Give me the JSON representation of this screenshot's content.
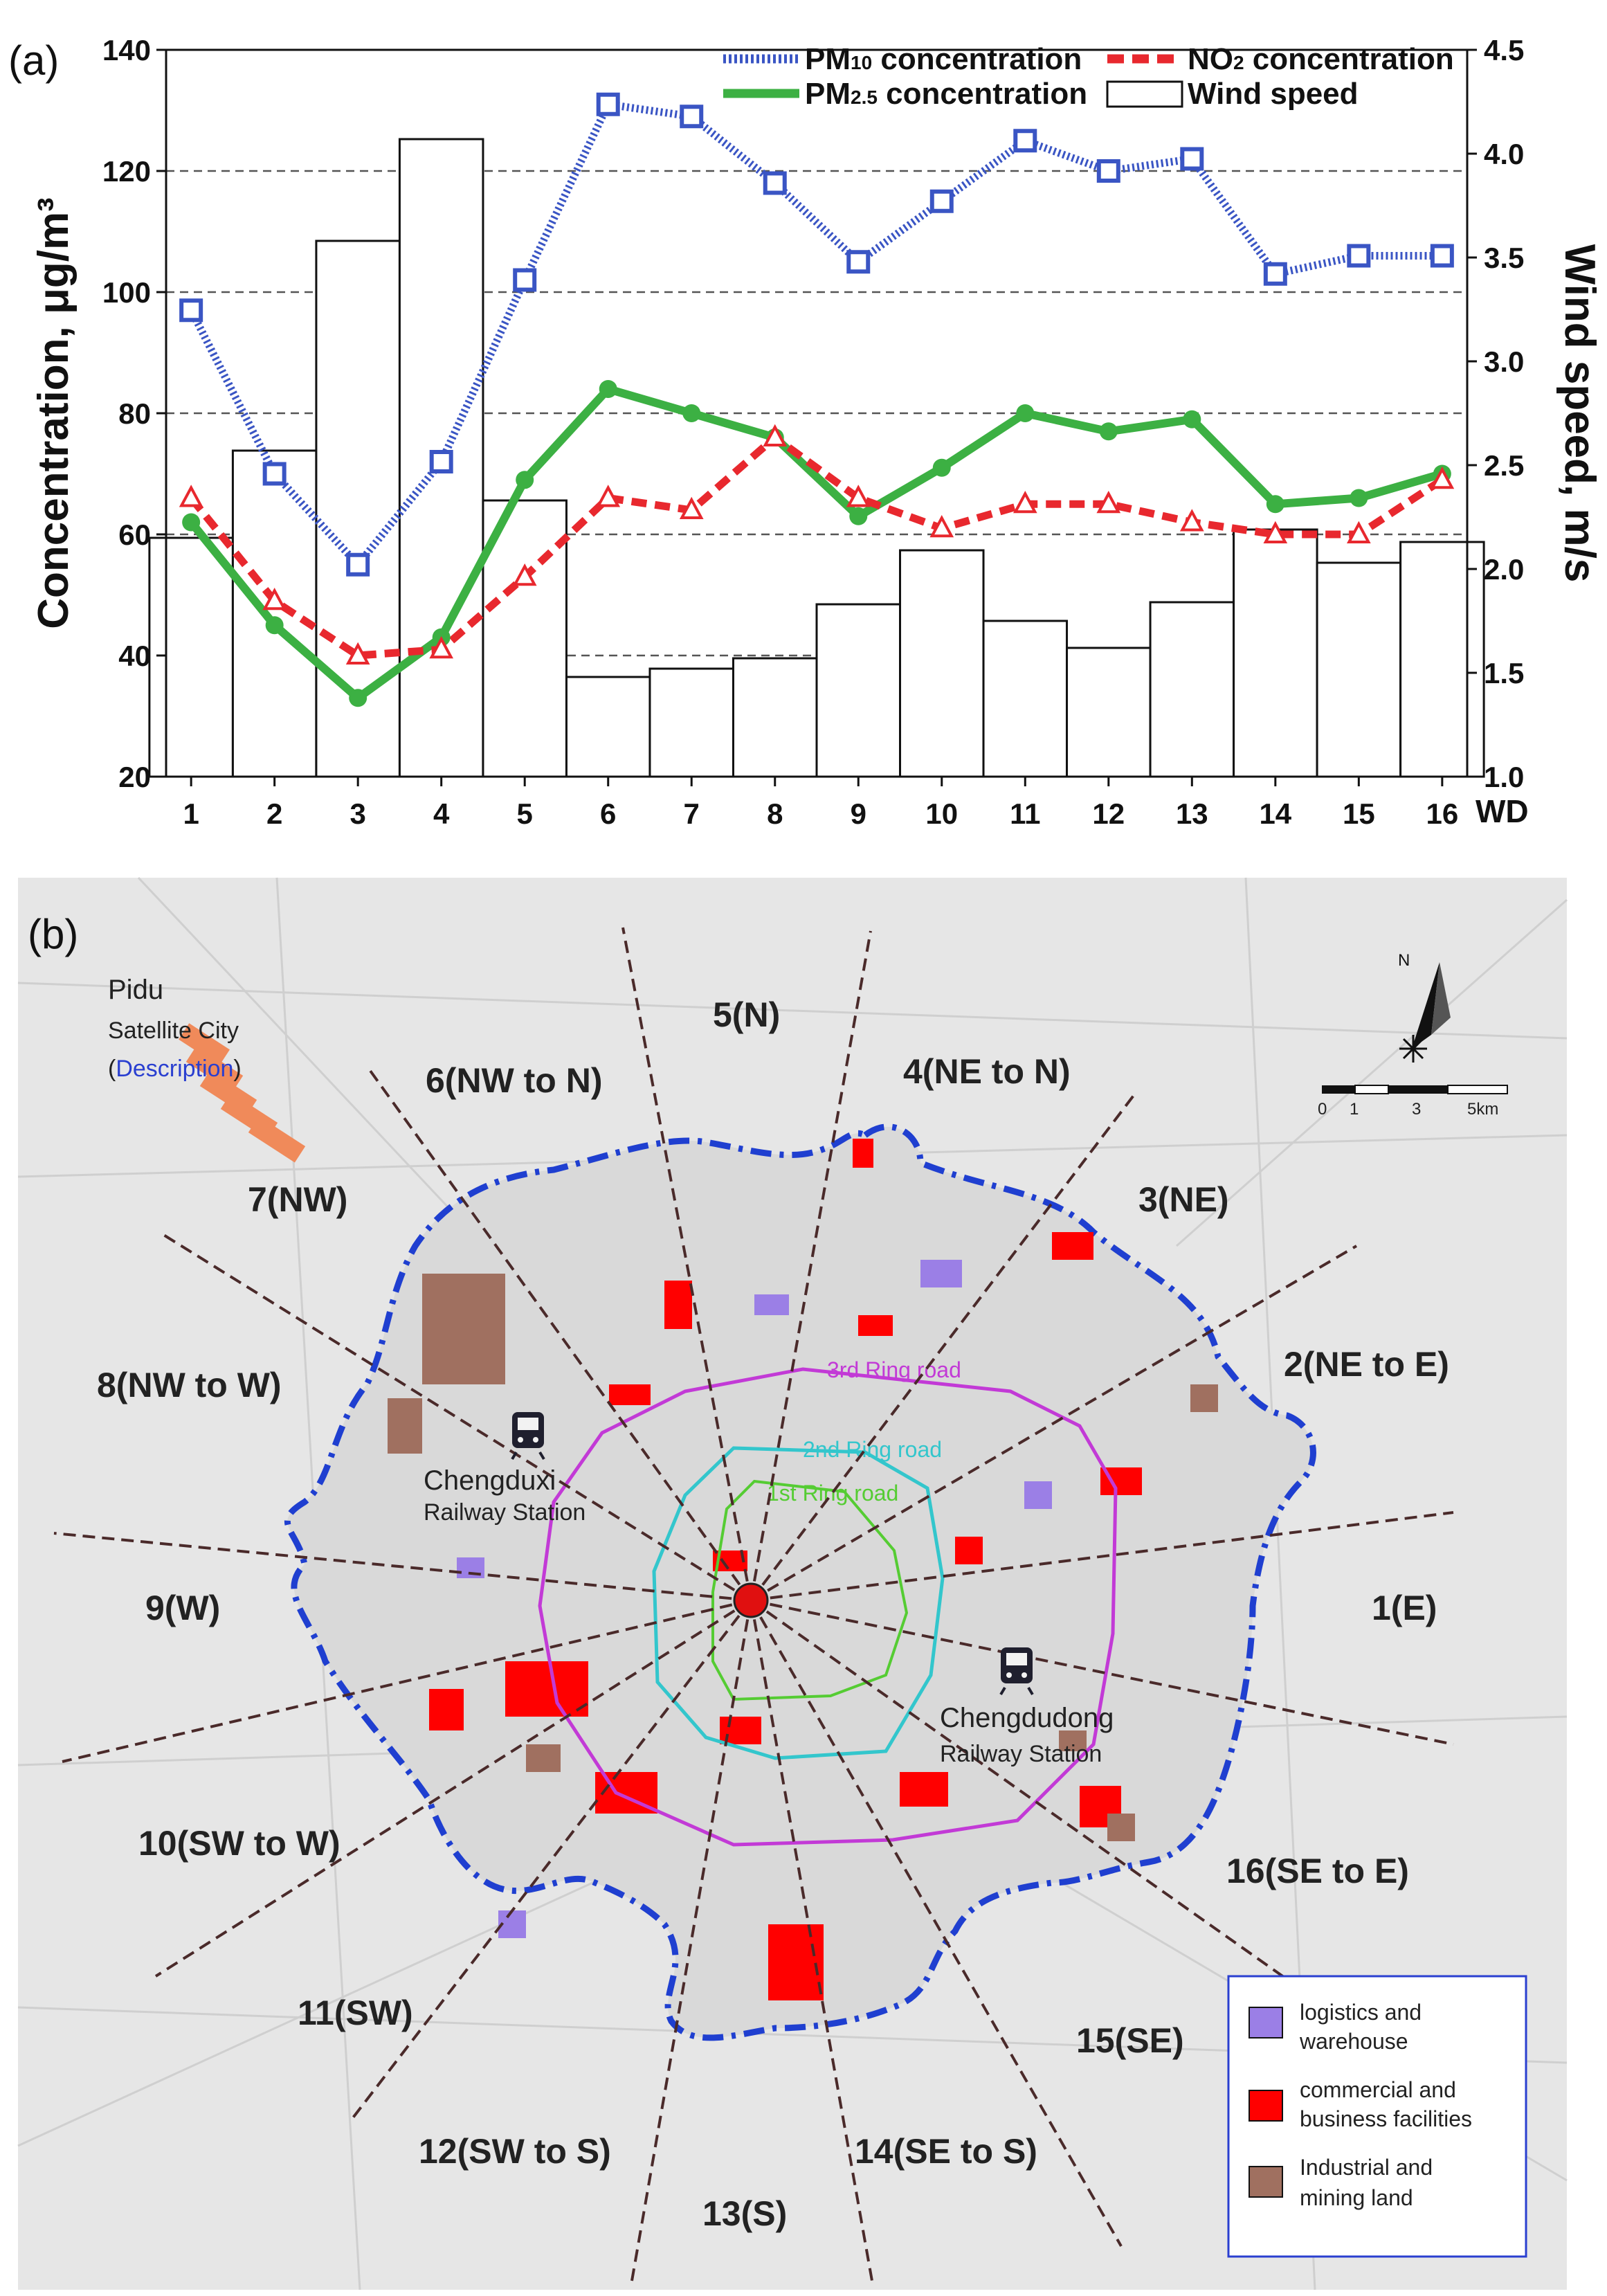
{
  "chart_data": [
    {
      "type": "bar+line",
      "panel_label": "(a)",
      "title": "",
      "xlabel": "WD",
      "ylabel": "Concentration, μg/m³",
      "y2label": "Wind speed, m/s",
      "x": [
        1,
        2,
        3,
        4,
        5,
        6,
        7,
        8,
        9,
        10,
        11,
        12,
        13,
        14,
        15,
        16
      ],
      "x_tick_labels": [
        "1",
        "2",
        "3",
        "4",
        "5",
        "6",
        "7",
        "8",
        "9",
        "10",
        "11",
        "12",
        "13",
        "14",
        "15",
        "16"
      ],
      "ylim": [
        20,
        140
      ],
      "y_ticks": [
        20,
        40,
        60,
        80,
        100,
        120,
        140
      ],
      "y2lim": [
        1.0,
        4.5
      ],
      "y2_ticks": [
        "1.0",
        "1.5",
        "2.0",
        "2.5",
        "3.0",
        "3.5",
        "4.0",
        "4.5"
      ],
      "grid": "horizontal dashed",
      "legend_position": "top",
      "series": [
        {
          "name": "PM10 concentration",
          "legend_main": "PM",
          "legend_sub": "10",
          "legend_rest": " concentration",
          "axis": "left",
          "style": "dotted line, square markers",
          "color": "#3a55c4",
          "values": [
            97,
            70,
            55,
            72,
            102,
            131,
            129,
            118,
            105,
            115,
            125,
            120,
            122,
            103,
            106,
            106
          ]
        },
        {
          "name": "NO2 concentration",
          "legend_main": "NO",
          "legend_sub": "2",
          "legend_rest": " concentration",
          "axis": "left",
          "style": "dashed line, triangle markers",
          "color": "#e8282e",
          "values": [
            66,
            49,
            40,
            41,
            53,
            66,
            64,
            76,
            66,
            61,
            65,
            65,
            62,
            60,
            60,
            69
          ]
        },
        {
          "name": "PM2.5 concentration",
          "legend_main": "PM",
          "legend_sub": "2.5",
          "legend_rest": " concentration",
          "axis": "left",
          "style": "solid line, circle markers",
          "color": "#3cb043",
          "values": [
            62,
            45,
            33,
            43,
            69,
            84,
            80,
            76,
            63,
            71,
            80,
            77,
            79,
            65,
            66,
            70
          ]
        },
        {
          "name": "Wind speed",
          "legend_main": "Wind speed",
          "legend_sub": "",
          "legend_rest": "",
          "axis": "right",
          "style": "open bars",
          "color": "#000000",
          "values": [
            2.15,
            2.57,
            3.58,
            4.07,
            2.33,
            1.48,
            1.52,
            1.57,
            1.83,
            2.09,
            1.75,
            1.62,
            1.84,
            2.19,
            2.03,
            2.13
          ]
        }
      ]
    },
    {
      "type": "map",
      "panel_label": "(b)",
      "wind_direction_sectors": [
        "1(E)",
        "2(NE to E)",
        "3(NE)",
        "4(NE to N)",
        "5(N)",
        "6(NW to N)",
        "7(NW)",
        "8(NW to W)",
        "9(W)",
        "10(SW to W)",
        "11(SW)",
        "12(SW to S)",
        "13(S)",
        "14(SE to S)",
        "15(SE)",
        "16(SE to E)"
      ],
      "ring_roads": [
        "3rd Ring road",
        "2nd Ring road",
        "1st Ring road"
      ],
      "places": {
        "pidu_name": "Pidu",
        "pidu_sub": "Satellite City",
        "pidu_open": "(",
        "pidu_link": "Description",
        "pidu_close": ")",
        "station_w_name": "Chengduxi",
        "station_w_sub": "Railway Station",
        "station_e_name": "Chengdudong",
        "station_e_sub": "Railway Station"
      },
      "compass": {
        "north": "N"
      },
      "scale_bar": {
        "ticks": [
          "0",
          "1",
          "3",
          "5km"
        ]
      },
      "legend": [
        {
          "line1": "logistics and",
          "line2": "warehouse",
          "color": "#9b7fe6"
        },
        {
          "line1": "commercial and",
          "line2": "business facilities",
          "color": "#ff0000"
        },
        {
          "line1": "Industrial and",
          "line2": "mining land",
          "color": "#a07060"
        }
      ],
      "colors": {
        "boundary": "#1f3fd0",
        "ring3": "#c23ad6",
        "ring2": "#33c6cc",
        "ring1": "#55cc33",
        "sector_lines": "#4a2a2a",
        "center": "#e01010",
        "pidu": "#f08a5a",
        "map_bg": "#e6e6e6"
      }
    }
  ]
}
